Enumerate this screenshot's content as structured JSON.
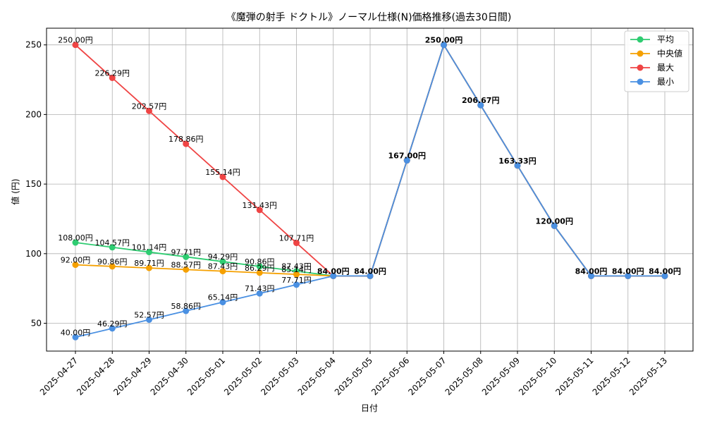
{
  "chart_data": {
    "type": "line",
    "title": "《魔弾の射手 ドクトル》ノーマル仕様(N)価格推移(過去30日間)",
    "xlabel": "日付",
    "ylabel": "値 (円)",
    "ylim": [
      30,
      262
    ],
    "yticks": [
      50,
      100,
      150,
      200,
      250
    ],
    "grid": true,
    "legend_position": "top-right",
    "label_suffix": "円",
    "categories": [
      "2025-04-27",
      "2025-04-28",
      "2025-04-29",
      "2025-04-30",
      "2025-05-01",
      "2025-05-02",
      "2025-05-03",
      "2025-05-04",
      "2025-05-05",
      "2025-05-06",
      "2025-05-07",
      "2025-05-08",
      "2025-05-09",
      "2025-05-10",
      "2025-05-11",
      "2025-05-12",
      "2025-05-13"
    ],
    "series": [
      {
        "name": "平均",
        "color": "#2ecc71",
        "values": [
          108.0,
          104.57,
          101.14,
          97.71,
          94.29,
          90.86,
          87.43,
          84.0,
          84.0,
          167.0,
          250.0,
          206.67,
          163.33,
          120.0,
          84.0,
          84.0,
          84.0
        ]
      },
      {
        "name": "中央値",
        "color": "#f5a000",
        "values": [
          92.0,
          90.86,
          89.71,
          88.57,
          87.43,
          86.29,
          85.14,
          84.0,
          84.0,
          167.0,
          250.0,
          206.67,
          163.33,
          120.0,
          84.0,
          84.0,
          84.0
        ]
      },
      {
        "name": "最大",
        "color": "#ef4444",
        "values": [
          250.0,
          226.29,
          202.57,
          178.86,
          155.14,
          131.43,
          107.71,
          84.0,
          84.0,
          167.0,
          250.0,
          206.67,
          163.33,
          120.0,
          84.0,
          84.0,
          84.0
        ]
      },
      {
        "name": "最小",
        "color": "#4a90e2",
        "values": [
          40.0,
          46.29,
          52.57,
          58.86,
          65.14,
          71.43,
          77.71,
          84.0,
          84.0,
          167.0,
          250.0,
          206.67,
          163.33,
          120.0,
          84.0,
          84.0,
          84.0
        ]
      }
    ]
  }
}
